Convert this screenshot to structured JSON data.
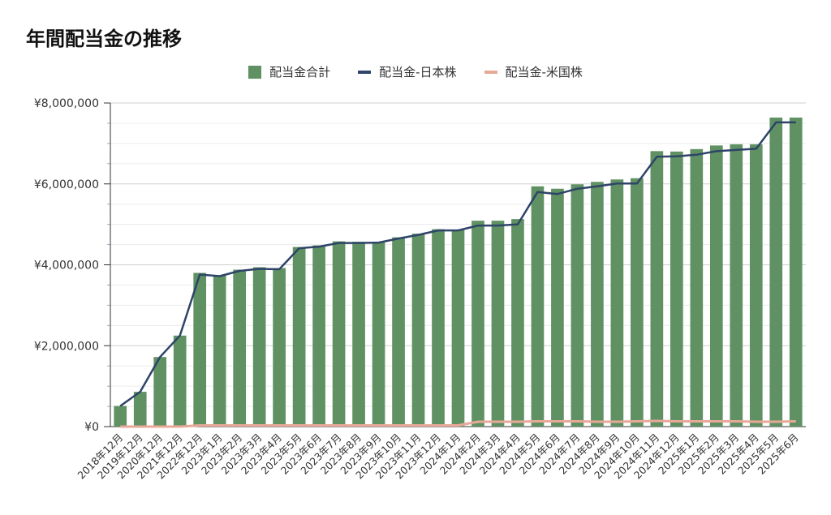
{
  "chart_data": {
    "type": "bar",
    "title": "年間配当金の推移",
    "categories": [
      "2018年12月",
      "2019年12月",
      "2020年12月",
      "2021年12月",
      "2022年12月",
      "2023年1月",
      "2023年2月",
      "2023年3月",
      "2023年4月",
      "2023年5月",
      "2023年6月",
      "2023年7月",
      "2023年8月",
      "2023年9月",
      "2023年10月",
      "2023年11月",
      "2023年12月",
      "2024年1月",
      "2024年2月",
      "2024年3月",
      "2024年4月",
      "2024年5月",
      "2024年6月",
      "2024年7月",
      "2024年8月",
      "2024年9月",
      "2024年10月",
      "2024年11月",
      "2024年12月",
      "2025年1月",
      "2025年2月",
      "2025年3月",
      "2025年4月",
      "2025年5月",
      "2025年6月"
    ],
    "series": [
      {
        "name": "配当金合計",
        "kind": "bar",
        "color": "#5f9163",
        "values": [
          510000,
          860000,
          1720000,
          2250000,
          3800000,
          3740000,
          3880000,
          3940000,
          3920000,
          4440000,
          4480000,
          4580000,
          4570000,
          4570000,
          4680000,
          4770000,
          4880000,
          4870000,
          5090000,
          5090000,
          5130000,
          5940000,
          5880000,
          5990000,
          6050000,
          6110000,
          6140000,
          6810000,
          6800000,
          6860000,
          6950000,
          6980000,
          6980000,
          7640000,
          7640000
        ]
      },
      {
        "name": "配当金-日本株",
        "kind": "line",
        "color": "#2e4468",
        "values": [
          510000,
          860000,
          1720000,
          2250000,
          3760000,
          3720000,
          3850000,
          3900000,
          3890000,
          4410000,
          4450000,
          4540000,
          4540000,
          4550000,
          4650000,
          4740000,
          4850000,
          4850000,
          4970000,
          4970000,
          5000000,
          5800000,
          5750000,
          5880000,
          5940000,
          6010000,
          6010000,
          6670000,
          6680000,
          6720000,
          6810000,
          6840000,
          6870000,
          7520000,
          7520000
        ]
      },
      {
        "name": "配当金-米国株",
        "kind": "line",
        "color": "#e8a898",
        "values": [
          0,
          0,
          0,
          0,
          30000,
          30000,
          30000,
          30000,
          30000,
          30000,
          30000,
          30000,
          30000,
          30000,
          30000,
          30000,
          30000,
          30000,
          120000,
          120000,
          120000,
          130000,
          130000,
          130000,
          120000,
          120000,
          130000,
          140000,
          130000,
          130000,
          130000,
          130000,
          120000,
          120000,
          130000
        ]
      }
    ],
    "ylim": [
      0,
      8000000
    ],
    "y_ticks": [
      "¥0",
      "¥2,000,000",
      "¥4,000,000",
      "¥6,000,000",
      "¥8,000,000"
    ],
    "y_tick_values": [
      0,
      2000000,
      4000000,
      6000000,
      8000000
    ],
    "legend_position": "top-center",
    "grid": true
  }
}
